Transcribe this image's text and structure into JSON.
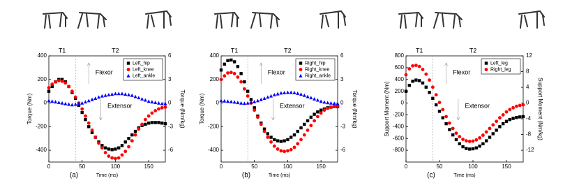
{
  "chart_data": [
    {
      "type": "scatter",
      "panel_label": "(a)",
      "x_label": "Time (ms)",
      "y_label": "Torque (Nm)",
      "y2_label": "Torque (Nm/kg)",
      "annotations": [
        "T1",
        "T2",
        "Flexor",
        "Extensor"
      ],
      "divider_x": 40,
      "xlim": [
        0,
        175
      ],
      "xticks": [
        0,
        50,
        100,
        150
      ],
      "ylim": [
        -500,
        400
      ],
      "yticks": [
        -400,
        -200,
        0,
        200,
        400
      ],
      "y2lim": [
        -7.5,
        6
      ],
      "y2ticks": [
        -6,
        -3,
        0,
        3,
        6
      ],
      "legend": "upper right",
      "x": [
        0,
        5,
        10,
        15,
        20,
        25,
        30,
        35,
        40,
        45,
        50,
        55,
        60,
        65,
        70,
        75,
        80,
        85,
        90,
        95,
        100,
        105,
        110,
        115,
        120,
        125,
        130,
        135,
        140,
        145,
        150,
        155,
        160,
        165,
        170,
        175
      ],
      "series": [
        {
          "name": "Left_hip",
          "color": "#000000",
          "marker": "square",
          "values": [
            100,
            140,
            180,
            200,
            200,
            180,
            140,
            90,
            40,
            -20,
            -80,
            -140,
            -200,
            -250,
            -290,
            -330,
            -360,
            -380,
            -390,
            -395,
            -390,
            -380,
            -360,
            -330,
            -300,
            -270,
            -240,
            -210,
            -190,
            -180,
            -170,
            -165,
            -165,
            -165,
            -170,
            -175
          ]
        },
        {
          "name": "Left_knee",
          "color": "#ff0000",
          "marker": "circle",
          "values": [
            130,
            160,
            180,
            190,
            185,
            170,
            140,
            100,
            50,
            0,
            -50,
            -110,
            -170,
            -230,
            -290,
            -340,
            -380,
            -420,
            -450,
            -465,
            -470,
            -465,
            -440,
            -410,
            -370,
            -320,
            -270,
            -220,
            -180,
            -140,
            -110,
            -85,
            -65,
            -50,
            -40,
            -35
          ]
        },
        {
          "name": "Left_ankle",
          "color": "#0000ff",
          "marker": "triangle",
          "values": [
            20,
            15,
            10,
            5,
            0,
            -5,
            -10,
            -15,
            -10,
            -5,
            0,
            10,
            20,
            30,
            40,
            50,
            60,
            65,
            70,
            75,
            80,
            80,
            80,
            75,
            70,
            65,
            55,
            45,
            35,
            25,
            15,
            10,
            5,
            0,
            -5,
            -5
          ]
        }
      ]
    },
    {
      "type": "scatter",
      "panel_label": "(b)",
      "x_label": "Time (ms)",
      "y_label": "Torque (Nm)",
      "y2_label": "Torque (Nm/kg)",
      "annotations": [
        "T1",
        "T2",
        "Flexor",
        "Extensor"
      ],
      "divider_x": 40,
      "xlim": [
        0,
        175
      ],
      "xticks": [
        0,
        50,
        100,
        150
      ],
      "ylim": [
        -500,
        400
      ],
      "yticks": [
        -400,
        -200,
        0,
        200,
        400
      ],
      "y2lim": [
        -7.5,
        6
      ],
      "y2ticks": [
        -6,
        -3,
        0,
        3,
        6
      ],
      "legend": "upper right",
      "x": [
        0,
        5,
        10,
        15,
        20,
        25,
        30,
        35,
        40,
        45,
        50,
        55,
        60,
        65,
        70,
        75,
        80,
        85,
        90,
        95,
        100,
        105,
        110,
        115,
        120,
        125,
        130,
        135,
        140,
        145,
        150,
        155,
        160,
        165,
        170,
        175
      ],
      "series": [
        {
          "name": "Right_hip",
          "color": "#000000",
          "marker": "square",
          "values": [
            280,
            330,
            360,
            365,
            350,
            310,
            250,
            180,
            100,
            30,
            -40,
            -110,
            -170,
            -220,
            -260,
            -290,
            -310,
            -320,
            -325,
            -320,
            -310,
            -290,
            -270,
            -240,
            -210,
            -180,
            -150,
            -120,
            -95,
            -75,
            -60,
            -50,
            -40,
            -35,
            -30,
            -30
          ]
        },
        {
          "name": "Right_knee",
          "color": "#ff0000",
          "marker": "circle",
          "values": [
            200,
            230,
            255,
            260,
            250,
            220,
            180,
            120,
            60,
            0,
            -60,
            -120,
            -180,
            -240,
            -290,
            -330,
            -365,
            -390,
            -405,
            -410,
            -405,
            -395,
            -375,
            -345,
            -310,
            -270,
            -230,
            -190,
            -150,
            -115,
            -85,
            -60,
            -45,
            -35,
            -30,
            -25
          ]
        },
        {
          "name": "Right_ankle",
          "color": "#0000ff",
          "marker": "triangle",
          "values": [
            20,
            18,
            15,
            12,
            8,
            4,
            0,
            -3,
            0,
            5,
            12,
            20,
            30,
            40,
            50,
            60,
            70,
            78,
            85,
            88,
            90,
            90,
            88,
            82,
            75,
            65,
            55,
            45,
            35,
            25,
            15,
            8,
            3,
            0,
            -3,
            -5
          ]
        }
      ]
    },
    {
      "type": "scatter",
      "panel_label": "(c)",
      "x_label": "Time (ms)",
      "y_label": "Support Moment (Nm)",
      "y2_label": "Support Moment (Nm/kg)",
      "annotations": [
        "T1",
        "T2",
        "Flexor",
        "Extensor"
      ],
      "divider_x": 40,
      "xlim": [
        0,
        175
      ],
      "xticks": [
        0,
        50,
        100,
        150
      ],
      "ylim": [
        -1000,
        800
      ],
      "yticks": [
        -800,
        -600,
        -400,
        -200,
        0,
        200,
        400,
        600,
        800
      ],
      "y2lim": [
        -15,
        12
      ],
      "y2ticks": [
        -12,
        -8,
        -4,
        0,
        4,
        8,
        12
      ],
      "legend": "upper right",
      "x": [
        0,
        5,
        10,
        15,
        20,
        25,
        30,
        35,
        40,
        45,
        50,
        55,
        60,
        65,
        70,
        75,
        80,
        85,
        90,
        95,
        100,
        105,
        110,
        115,
        120,
        125,
        130,
        135,
        140,
        145,
        150,
        155,
        160,
        165,
        170,
        175
      ],
      "series": [
        {
          "name": "Left_leg",
          "color": "#000000",
          "marker": "square",
          "values": [
            200,
            300,
            370,
            390,
            380,
            340,
            270,
            180,
            80,
            -30,
            -140,
            -250,
            -350,
            -450,
            -540,
            -620,
            -690,
            -740,
            -770,
            -780,
            -775,
            -760,
            -730,
            -690,
            -640,
            -580,
            -520,
            -460,
            -400,
            -350,
            -310,
            -280,
            -260,
            -245,
            -235,
            -230
          ]
        },
        {
          "name": "Right_leg",
          "color": "#ff0000",
          "marker": "circle",
          "values": [
            480,
            580,
            630,
            640,
            620,
            570,
            490,
            390,
            270,
            140,
            10,
            -110,
            -230,
            -340,
            -430,
            -510,
            -570,
            -615,
            -640,
            -650,
            -645,
            -625,
            -590,
            -545,
            -490,
            -430,
            -370,
            -310,
            -250,
            -200,
            -150,
            -110,
            -80,
            -55,
            -40,
            -30
          ]
        }
      ]
    }
  ]
}
